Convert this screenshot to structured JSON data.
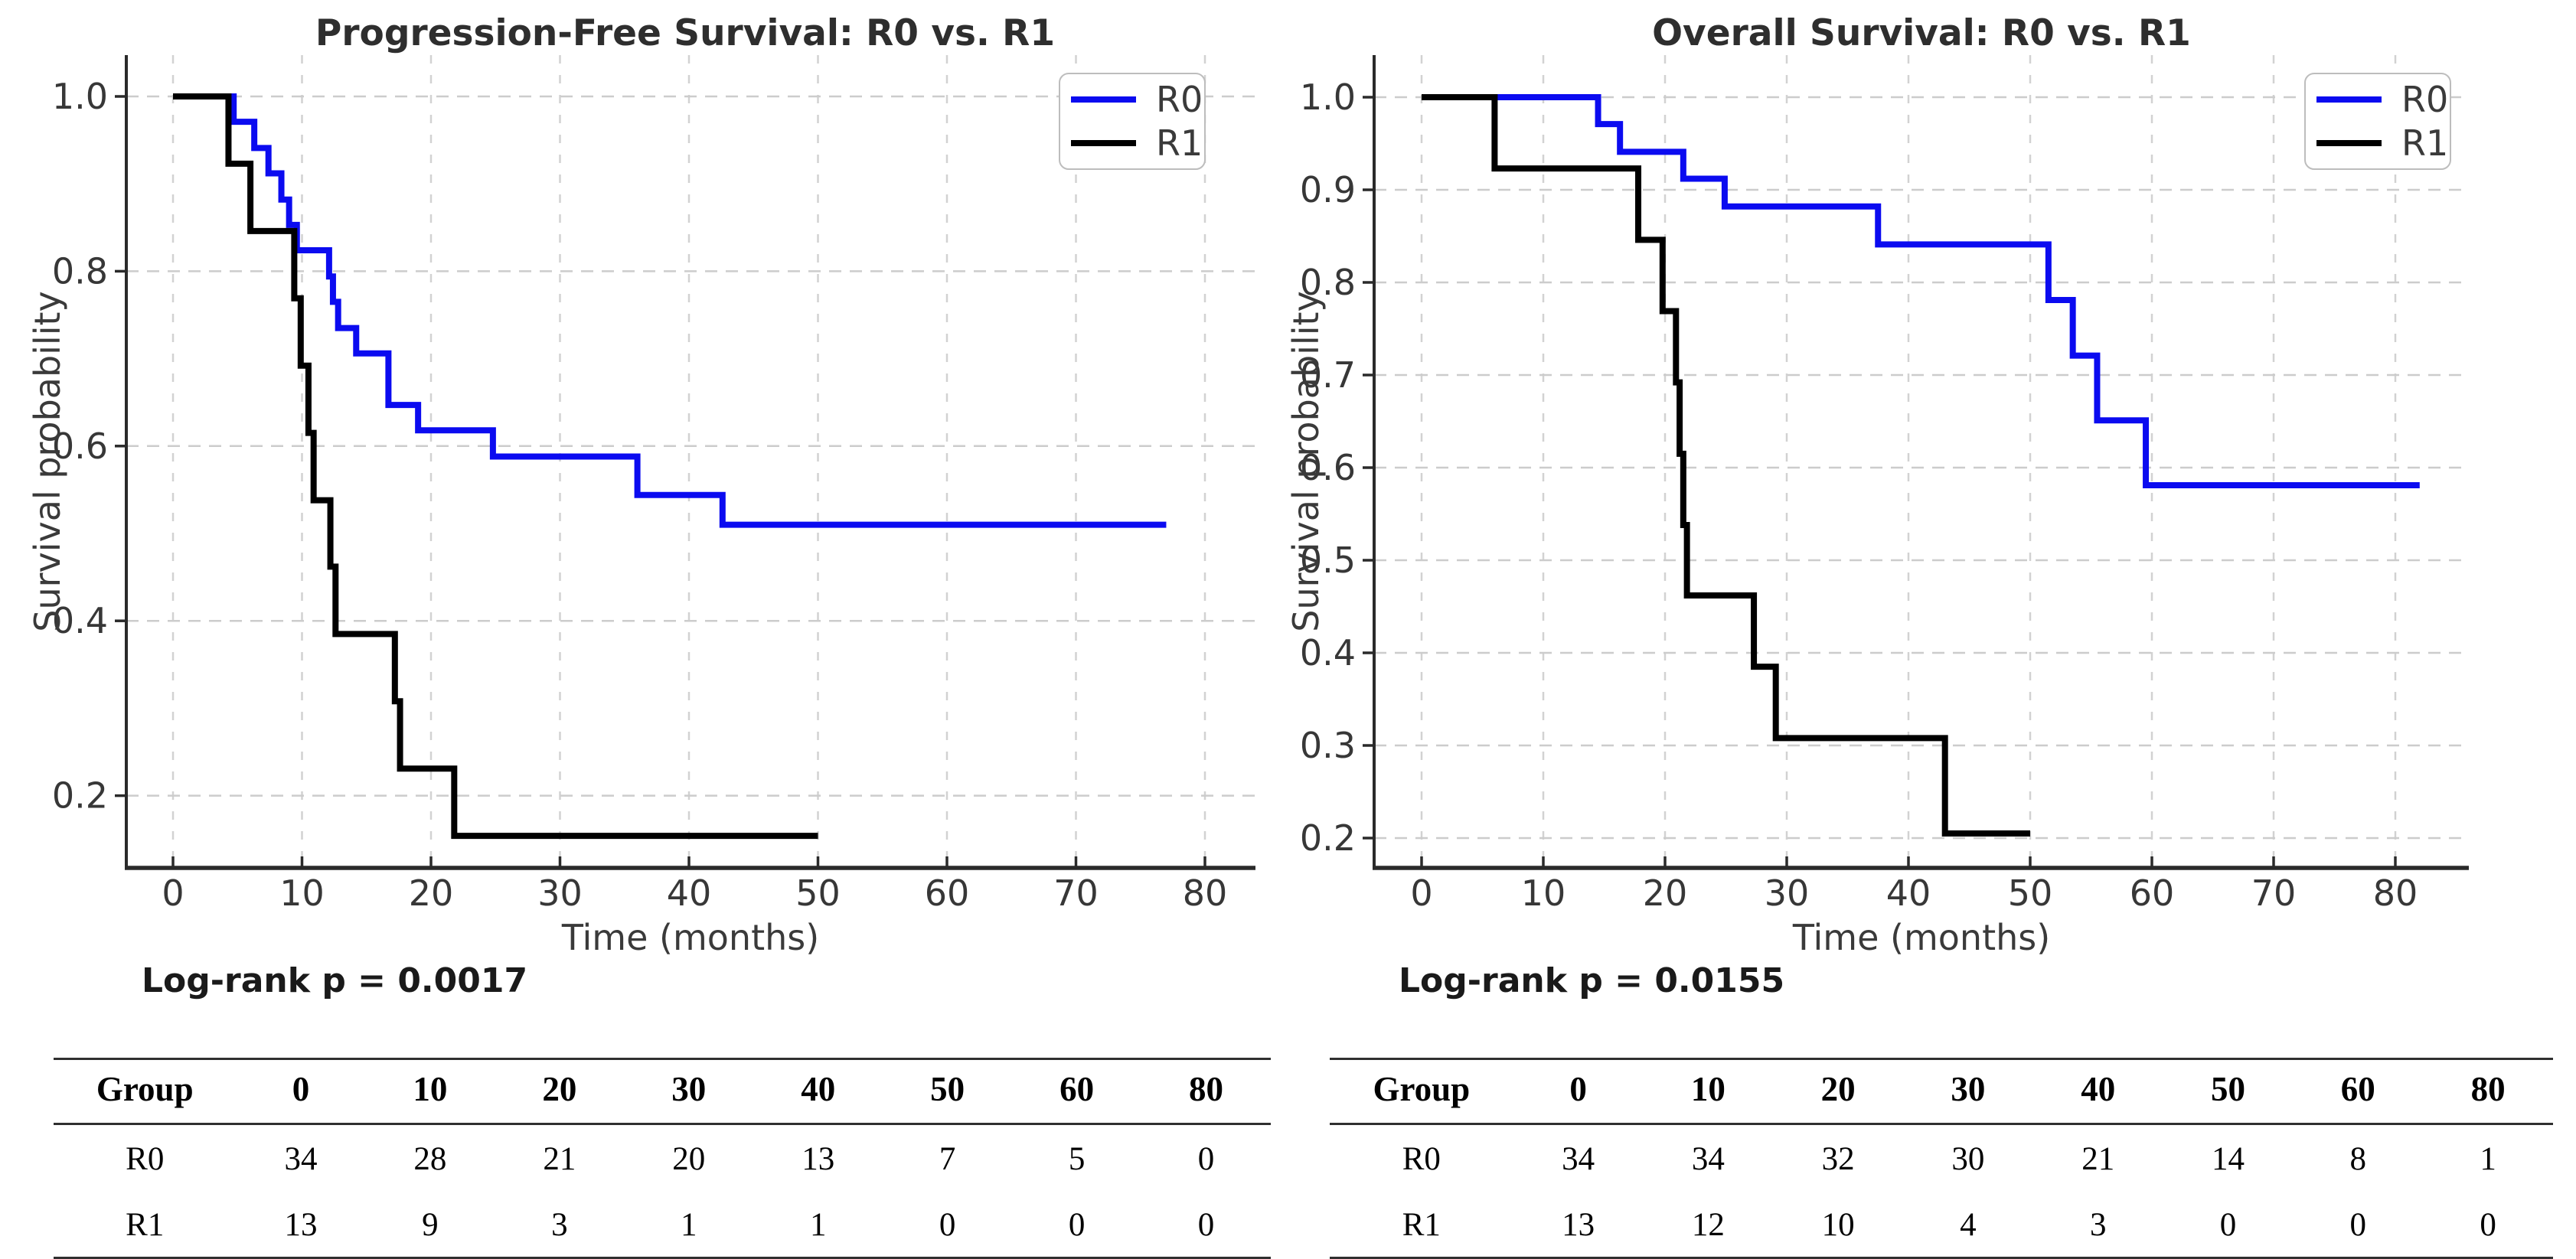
{
  "chart_data": [
    {
      "id": "pfs",
      "type": "line",
      "subtype": "kaplan-meier-step",
      "title": "Progression-Free Survival: R0 vs. R1",
      "xlabel": "Time (months)",
      "ylabel": "Survival probability",
      "annotation": "Log-rank p = 0.0017",
      "grid": true,
      "legend_position": "top-right",
      "xticks": [
        0,
        10,
        20,
        30,
        40,
        50,
        60,
        70,
        80
      ],
      "yticks": [
        0.2,
        0.4,
        0.6,
        0.8,
        1.0
      ],
      "xlim": [
        -3.6,
        84
      ],
      "ylim": [
        0.12,
        1.03
      ],
      "series": [
        {
          "name": "R0",
          "color": "#0b0bf0",
          "steps": [
            [
              0,
              1.0
            ],
            [
              4.7,
              0.971
            ],
            [
              6.3,
              0.941
            ],
            [
              7.4,
              0.912
            ],
            [
              8.4,
              0.882
            ],
            [
              9.0,
              0.853
            ],
            [
              9.6,
              0.824
            ],
            [
              12.1,
              0.794
            ],
            [
              12.4,
              0.765
            ],
            [
              12.8,
              0.735
            ],
            [
              14.2,
              0.706
            ],
            [
              16.7,
              0.647
            ],
            [
              19.0,
              0.618
            ],
            [
              24.8,
              0.588
            ],
            [
              36.0,
              0.544
            ],
            [
              42.6,
              0.51
            ]
          ],
          "end_time": 77
        },
        {
          "name": "R1",
          "color": "#000000",
          "steps": [
            [
              0,
              1.0
            ],
            [
              4.3,
              0.923
            ],
            [
              6.0,
              0.846
            ],
            [
              9.4,
              0.769
            ],
            [
              9.9,
              0.692
            ],
            [
              10.5,
              0.615
            ],
            [
              10.9,
              0.538
            ],
            [
              12.2,
              0.462
            ],
            [
              12.6,
              0.385
            ],
            [
              17.2,
              0.308
            ],
            [
              17.6,
              0.231
            ],
            [
              21.8,
              0.154
            ]
          ],
          "end_time": 50
        }
      ],
      "risk_table": {
        "headers": [
          "Group",
          "0",
          "10",
          "20",
          "30",
          "40",
          "50",
          "60",
          "80"
        ],
        "rows": [
          [
            "R0",
            "34",
            "28",
            "21",
            "20",
            "13",
            "7",
            "5",
            "0"
          ],
          [
            "R1",
            "13",
            "9",
            "3",
            "1",
            "1",
            "0",
            "0",
            "0"
          ]
        ]
      }
    },
    {
      "id": "os",
      "type": "line",
      "subtype": "kaplan-meier-step",
      "title": "Overall Survival: R0 vs. R1",
      "xlabel": "Time (months)",
      "ylabel": "Survival probability",
      "annotation": "Log-rank p = 0.0155",
      "grid": true,
      "legend_position": "top-right",
      "xticks": [
        0,
        10,
        20,
        30,
        40,
        50,
        60,
        70,
        80
      ],
      "yticks": [
        0.2,
        0.3,
        0.4,
        0.5,
        0.6,
        0.7,
        0.8,
        0.9,
        1.0
      ],
      "xlim": [
        -3.9,
        86
      ],
      "ylim": [
        0.17,
        1.03
      ],
      "series": [
        {
          "name": "R0",
          "color": "#0b0bf0",
          "steps": [
            [
              0,
              1.0
            ],
            [
              14.5,
              0.971
            ],
            [
              16.3,
              0.941
            ],
            [
              21.5,
              0.912
            ],
            [
              24.9,
              0.882
            ],
            [
              37.5,
              0.841
            ],
            [
              51.5,
              0.781
            ],
            [
              53.5,
              0.721
            ],
            [
              55.5,
              0.651
            ],
            [
              59.5,
              0.581
            ]
          ],
          "end_time": 82
        },
        {
          "name": "R1",
          "color": "#000000",
          "steps": [
            [
              0,
              1.0
            ],
            [
              6.0,
              0.923
            ],
            [
              17.8,
              0.846
            ],
            [
              19.8,
              0.769
            ],
            [
              20.9,
              0.692
            ],
            [
              21.2,
              0.615
            ],
            [
              21.5,
              0.538
            ],
            [
              21.8,
              0.462
            ],
            [
              27.3,
              0.385
            ],
            [
              29.1,
              0.308
            ],
            [
              43.0,
              0.205
            ]
          ],
          "end_time": 50
        }
      ],
      "risk_table": {
        "headers": [
          "Group",
          "0",
          "10",
          "20",
          "30",
          "40",
          "50",
          "60",
          "80"
        ],
        "rows": [
          [
            "R0",
            "34",
            "34",
            "32",
            "30",
            "21",
            "14",
            "8",
            "1"
          ],
          [
            "R1",
            "13",
            "12",
            "10",
            "4",
            "3",
            "0",
            "0",
            "0"
          ]
        ]
      }
    }
  ],
  "style": {
    "accent_blue": "#0b0bf0",
    "curve_black": "#000000",
    "grid_color": "#cccccc",
    "axis_color": "#2a2a2a",
    "tick_label_color": "#373737",
    "title_color": "#2e2e2e"
  }
}
